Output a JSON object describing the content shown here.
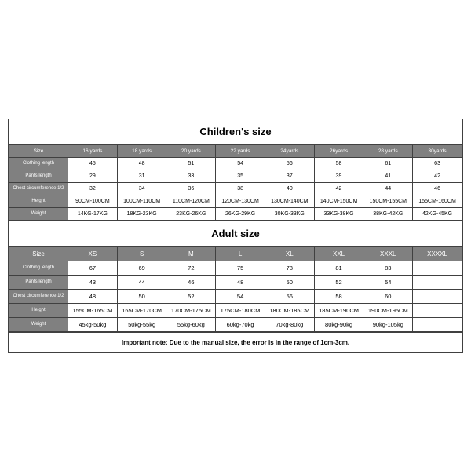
{
  "children": {
    "title": "Children's size",
    "headers": [
      "Size",
      "16 yards",
      "18 yards",
      "20 yards",
      "22 yards",
      "24yards",
      "26yards",
      "28 yards",
      "30yards"
    ],
    "rows": [
      {
        "label": "Clothing length",
        "values": [
          "45",
          "48",
          "51",
          "54",
          "56",
          "58",
          "61",
          "63"
        ]
      },
      {
        "label": "Pants length",
        "values": [
          "29",
          "31",
          "33",
          "35",
          "37",
          "39",
          "41",
          "42"
        ]
      },
      {
        "label": "Chest circumference 1/2",
        "values": [
          "32",
          "34",
          "36",
          "38",
          "40",
          "42",
          "44",
          "46"
        ]
      },
      {
        "label": "Height",
        "values": [
          "90CM-100CM",
          "100CM-110CM",
          "110CM-120CM",
          "120CM-130CM",
          "130CM-140CM",
          "140CM-150CM",
          "150CM-155CM",
          "155CM-160CM"
        ]
      },
      {
        "label": "Weight",
        "values": [
          "14KG-17KG",
          "18KG-23KG",
          "23KG-26KG",
          "26KG-29KG",
          "30KG-33KG",
          "33KG-38KG",
          "38KG-42KG",
          "42KG-45KG"
        ]
      }
    ]
  },
  "adult": {
    "title": "Adult size",
    "headers": [
      "Size",
      "XS",
      "S",
      "M",
      "L",
      "XL",
      "XXL",
      "XXXL",
      "XXXXL"
    ],
    "rows": [
      {
        "label": "Clothing length",
        "values": [
          "67",
          "69",
          "72",
          "75",
          "78",
          "81",
          "83",
          ""
        ]
      },
      {
        "label": "Pants length",
        "values": [
          "43",
          "44",
          "46",
          "48",
          "50",
          "52",
          "54",
          ""
        ]
      },
      {
        "label": "Chest circumference 1/2",
        "values": [
          "48",
          "50",
          "52",
          "54",
          "56",
          "58",
          "60",
          ""
        ]
      },
      {
        "label": "Height",
        "values": [
          "155CM-165CM",
          "165CM-170CM",
          "170CM-175CM",
          "175CM-180CM",
          "180CM-185CM",
          "185CM-190CM",
          "190CM-195CM",
          ""
        ]
      },
      {
        "label": "Weight",
        "values": [
          "45kg-50kg",
          "50kg-55kg",
          "55kg-60kg",
          "60kg-70kg",
          "70kg-80kg",
          "80kg-90kg",
          "90kg-105kg",
          ""
        ]
      }
    ]
  },
  "note": "Important note: Due to the manual size, the error is in the range of 1cm-3cm."
}
